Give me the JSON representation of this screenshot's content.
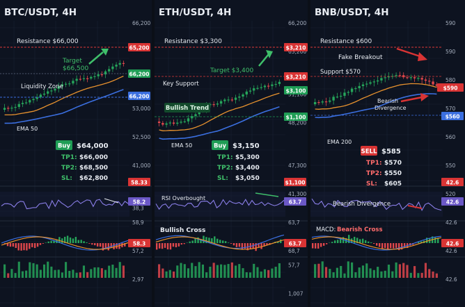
{
  "colors": {
    "bg": "#0d1320",
    "grid": "#1a2233",
    "up": "#26a65b",
    "down": "#e0474c",
    "resistance": "#e03a3a",
    "support_green": "#1f9d55",
    "blue": "#3b6fe0",
    "orange": "#e8922e",
    "label_white": "#e8ecf2",
    "axis_text": "#a7b0bf",
    "buy_green": "#1f9d55",
    "sell_red": "#d93434",
    "price_green": "#3fbf6a",
    "purple": "#6b58c6",
    "rsi_line": "#8a7ee8"
  },
  "chart_data": [
    {
      "type": "candlestick",
      "title": "BTC/USDT, 4H",
      "y_axis_labels": [
        "66,200",
        "",
        "",
        "",
        "",
        "",
        "53,000",
        "",
        "52,500",
        "",
        "41,000",
        "",
        "",
        "38,3",
        "58,9",
        "",
        "57,2",
        "",
        "2,97"
      ],
      "price_badges": {
        "resistance": "65,200",
        "current": "66,200",
        "support": "66,200",
        "lower": "58.33",
        "rsi": "58.2",
        "macd": "58.3"
      },
      "annotations": {
        "resistance": "Resistance $66,000",
        "target": "Target",
        "target_price": "$66,500",
        "liquidity": "Liquidity Zone",
        "ema": "EMA 50"
      },
      "signal": {
        "side": "Buy",
        "entry": "$64,000",
        "tp1_label": "TP1:",
        "tp1": "$66,000",
        "tp2_label": "TP2:",
        "tp2": "$68,500",
        "sl_label": "SL:",
        "sl": "$62,800"
      },
      "trend": "up"
    },
    {
      "type": "candlestick",
      "title": "ETH/USDT, 4H",
      "y_axis_labels": [
        "66,200",
        "",
        "63,200",
        "",
        "",
        "51,100",
        "",
        "48,200",
        "",
        "",
        "47,300",
        "",
        "41,300",
        "",
        "63,7",
        "",
        "68,7",
        "57,7",
        "",
        "1,007"
      ],
      "price_badges": {
        "resistance": "$3,210",
        "current": "$3,210",
        "support": "$3,100",
        "lower": "$1,100",
        "rsi": "63.7",
        "macd": "63.7",
        "extra": "63.7"
      },
      "annotations": {
        "resistance": "Resistance $3,300",
        "target": "Target $3,400",
        "key_support": "Key Support",
        "bullish_trend": "Bullish Trend",
        "ema": "EMA 50",
        "rsi": "RSI Overbought",
        "macd": "Bullish Cross"
      },
      "signal": {
        "side": "Buy",
        "entry": "$3,150",
        "tp1_label": "TP1:",
        "tp1": "$5,300",
        "tp2_label": "TP2:",
        "tp2": "$3,400",
        "sl_label": "SL:",
        "sl": "$3,050"
      },
      "trend": "up"
    },
    {
      "type": "candlestick",
      "title": "BNB/USDT, 4H",
      "y_axis_labels": [
        "590",
        "",
        "590",
        "",
        "580",
        "",
        "570",
        "",
        "560",
        "",
        "550",
        "",
        "520",
        "",
        "42.6",
        "",
        "42.6",
        "",
        "42.6"
      ],
      "price_badges": {
        "resistance": "",
        "current": "$590",
        "support": "$560",
        "lower": "42.6",
        "rsi": "42.6",
        "macd": "42.6"
      },
      "annotations": {
        "resistance": "Resistance $600",
        "fake": "Fake Breakout",
        "support": "Support $570",
        "bear1": "Bearish",
        "bear2": "Divergence",
        "ema": "EMA 200",
        "rsi": "Bearish Divergence",
        "macd_prefix": "MACD:",
        "macd": "Bearish Cross"
      },
      "signal": {
        "side": "SELL",
        "entry": "$585",
        "tp1_label": "TP1:",
        "tp1": "$570",
        "tp2_label": "TP2:",
        "tp2": "$550",
        "sl_label": "SL:",
        "sl": "$605"
      },
      "trend": "down"
    }
  ]
}
